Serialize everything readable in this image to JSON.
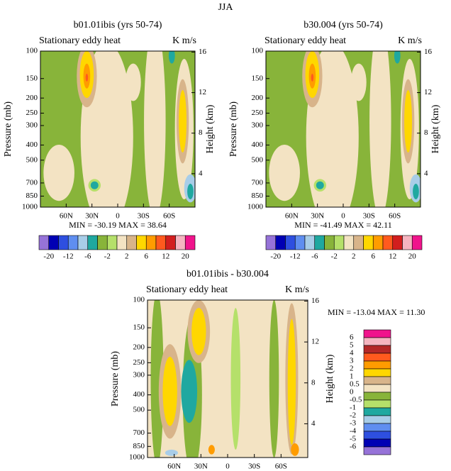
{
  "title": "JJA",
  "chart_data": [
    {
      "type": "contour",
      "title": "b01.01ibis (yrs 50-74)",
      "subtitle_left": "Stationary eddy heat",
      "subtitle_right": "K m/s",
      "stats": "MIN = -30.19   MAX = 38.64",
      "ylabel": "Pressure (mb)",
      "y2label": "Height (km)",
      "xlim": [
        90,
        -90
      ],
      "xticks": [
        {
          "value": 60,
          "label": "60N"
        },
        {
          "value": 30,
          "label": "30N"
        },
        0,
        {
          "value": -30,
          "label": "30S"
        },
        {
          "value": -60,
          "label": "60S"
        }
      ],
      "ylim": [
        1000,
        100
      ],
      "yscale": "log",
      "yticks": [
        100,
        150,
        200,
        250,
        300,
        400,
        500,
        700,
        850,
        1000
      ],
      "y2lim": [
        0.7,
        16.1
      ],
      "y2ticks": [
        4,
        8,
        12,
        16
      ],
      "colorbar": {
        "orientation": "horizontal",
        "labels": [
          -20,
          -12,
          -6,
          -2,
          2,
          6,
          12,
          20
        ],
        "colors": [
          "#9673d8",
          "#0000b4",
          "#2e4fe0",
          "#5f8ef0",
          "#a8cde8",
          "#1fa8a0",
          "#88b43a",
          "#b5e06a",
          "#f3e3c3",
          "#d8b48a",
          "#ffd700",
          "#ff9c00",
          "#ff5a1e",
          "#d21e1e",
          "#f5b5c0",
          "#f0148c"
        ]
      }
    },
    {
      "type": "contour",
      "title": "b30.004 (yrs 50-74)",
      "subtitle_left": "Stationary eddy heat",
      "subtitle_right": "K m/s",
      "stats": "MIN = -41.49   MAX = 42.11",
      "ylabel": "Pressure (mb)",
      "y2label": "Height (km)",
      "xlim": [
        90,
        -90
      ],
      "xticks": [
        {
          "value": 60,
          "label": "60N"
        },
        {
          "value": 30,
          "label": "30N"
        },
        0,
        {
          "value": -30,
          "label": "30S"
        },
        {
          "value": -60,
          "label": "60S"
        }
      ],
      "ylim": [
        1000,
        100
      ],
      "yscale": "log",
      "yticks": [
        100,
        150,
        200,
        250,
        300,
        400,
        500,
        700,
        850,
        1000
      ],
      "y2lim": [
        0.7,
        16.1
      ],
      "y2ticks": [
        4,
        8,
        12,
        16
      ],
      "colorbar": {
        "orientation": "horizontal",
        "labels": [
          -20,
          -12,
          -6,
          -2,
          2,
          6,
          12,
          20
        ],
        "colors": [
          "#9673d8",
          "#0000b4",
          "#2e4fe0",
          "#5f8ef0",
          "#a8cde8",
          "#1fa8a0",
          "#88b43a",
          "#b5e06a",
          "#f3e3c3",
          "#d8b48a",
          "#ffd700",
          "#ff9c00",
          "#ff5a1e",
          "#d21e1e",
          "#f5b5c0",
          "#f0148c"
        ]
      }
    },
    {
      "type": "contour",
      "title": "b01.01ibis - b30.004",
      "subtitle_left": "Stationary eddy heat",
      "subtitle_right": "K m/s",
      "stats": "MIN = -13.04   MAX = 11.30",
      "ylabel": "Pressure (mb)",
      "y2label": "Height (km)",
      "xlim": [
        90,
        -90
      ],
      "xticks": [
        {
          "value": 60,
          "label": "60N"
        },
        {
          "value": 30,
          "label": "30N"
        },
        0,
        {
          "value": -30,
          "label": "30S"
        },
        {
          "value": -60,
          "label": "60S"
        }
      ],
      "ylim": [
        1000,
        100
      ],
      "yscale": "log",
      "yticks": [
        100,
        150,
        200,
        250,
        300,
        400,
        500,
        700,
        850,
        1000
      ],
      "y2lim": [
        0.7,
        16.1
      ],
      "y2ticks": [
        4,
        8,
        12,
        16
      ],
      "colorbar": {
        "orientation": "vertical",
        "labels": [
          6,
          5,
          4,
          3,
          2,
          1,
          0.5,
          0,
          -0.5,
          -1,
          -2,
          -3,
          -4,
          -5,
          -6
        ],
        "colors": [
          "#f0148c",
          "#f5b5c0",
          "#b42828",
          "#ff5a1e",
          "#ff9c00",
          "#ffd700",
          "#d8b48a",
          "#f3e3c3",
          "#88b43a",
          "#b5e06a",
          "#1fa8a0",
          "#a8cde8",
          "#5f8ef0",
          "#2e4fe0",
          "#0000b4",
          "#9673d8"
        ]
      }
    }
  ]
}
